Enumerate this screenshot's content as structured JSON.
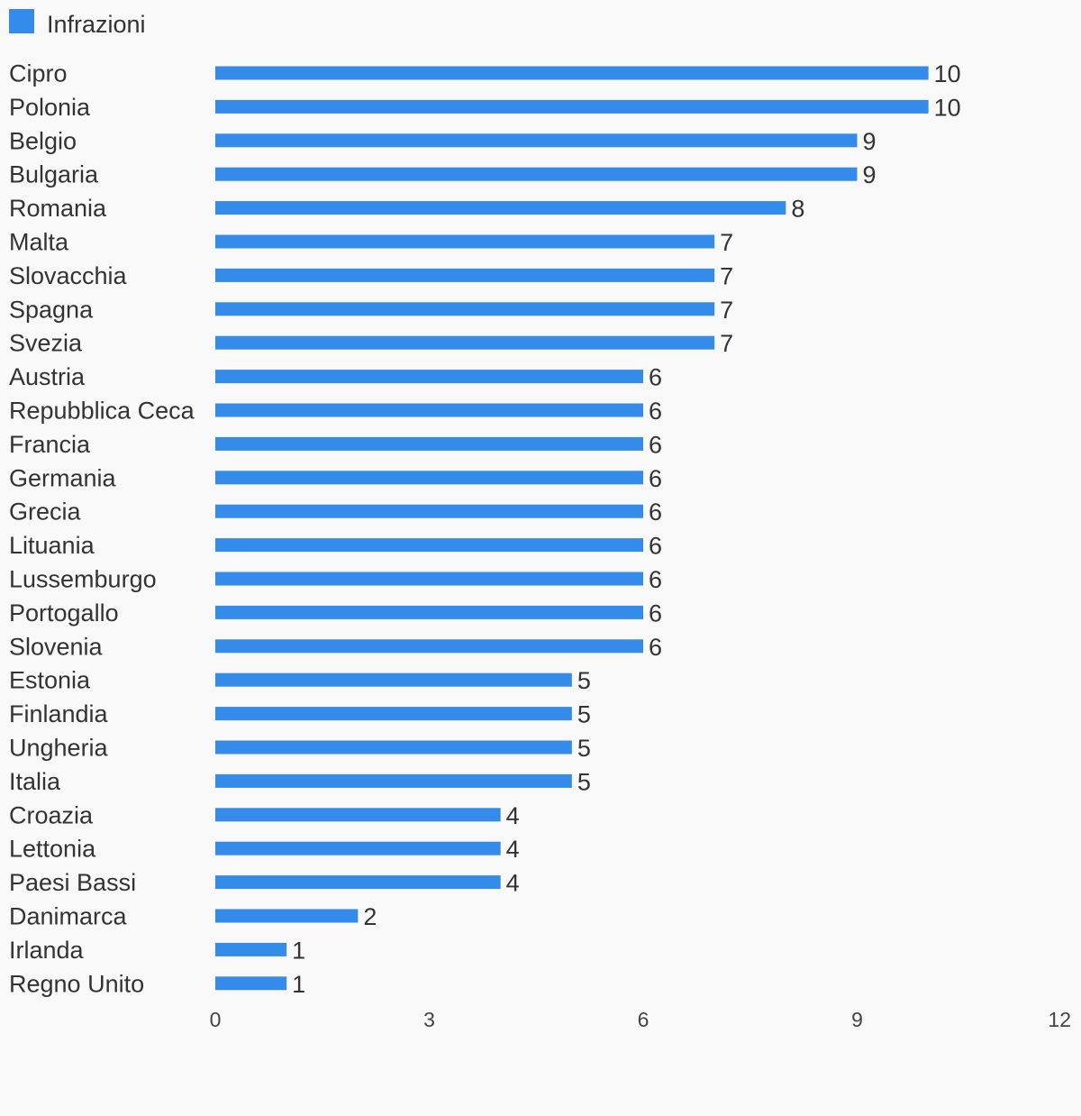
{
  "chart_data": {
    "type": "bar",
    "orientation": "horizontal",
    "legend": {
      "position": "top-left",
      "entries": [
        "Infrazioni"
      ]
    },
    "series": [
      {
        "name": "Infrazioni",
        "color": "#348be9",
        "values": [
          10,
          10,
          9,
          9,
          8,
          7,
          7,
          7,
          7,
          6,
          6,
          6,
          6,
          6,
          6,
          6,
          6,
          6,
          5,
          5,
          5,
          5,
          4,
          4,
          4,
          2,
          1,
          1
        ]
      }
    ],
    "categories": [
      "Cipro",
      "Polonia",
      "Belgio",
      "Bulgaria",
      "Romania",
      "Malta",
      "Slovacchia",
      "Spagna",
      "Svezia",
      "Austria",
      "Repubblica Ceca",
      "Francia",
      "Germania",
      "Grecia",
      "Lituania",
      "Lussemburgo",
      "Portogallo",
      "Slovenia",
      "Estonia",
      "Finlandia",
      "Ungheria",
      "Italia",
      "Croazia",
      "Lettonia",
      "Paesi Bassi",
      "Danimarca",
      "Irlanda",
      "Regno Unito"
    ],
    "xlim": [
      0,
      12
    ],
    "xticks": [
      "0",
      "3",
      "6",
      "9",
      "12"
    ],
    "grid": false,
    "title": "",
    "xlabel": "",
    "ylabel": ""
  }
}
